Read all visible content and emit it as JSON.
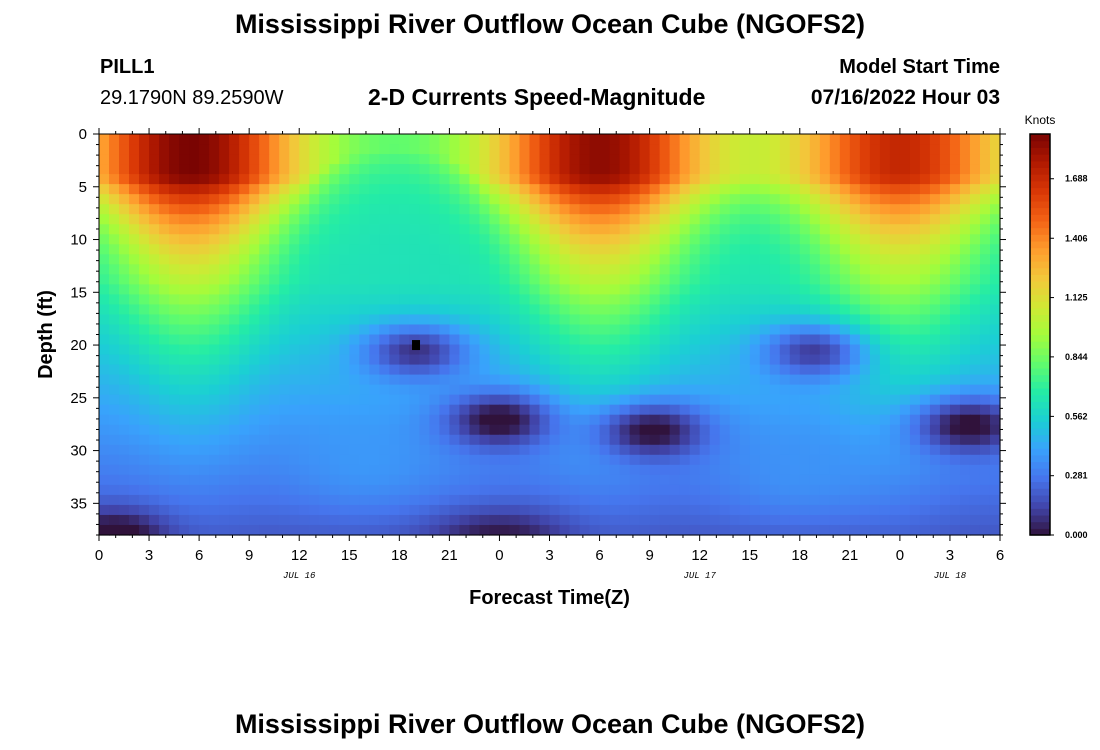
{
  "header": {
    "title": "Mississippi River Outflow Ocean Cube (NGOFS2)",
    "station": "PILL1",
    "coordinates": "29.1790N  89.2590W",
    "subtitle": "2-D Currents Speed-Magnitude",
    "model_start_label": "Model Start Time",
    "model_start_value": "07/16/2022 Hour 03"
  },
  "footer": {
    "title": "Mississippi River Outflow Ocean Cube (NGOFS2)"
  },
  "chart_data": {
    "type": "heatmap",
    "title": "2-D Currents Speed-Magnitude",
    "xlabel": "Forecast Time(Z)",
    "ylabel": "Depth (ft)",
    "x_range_hours": [
      0,
      54
    ],
    "x_tick_labels": [
      "0",
      "3",
      "6",
      "9",
      "12",
      "15",
      "18",
      "21",
      "0",
      "3",
      "6",
      "9",
      "12",
      "15",
      "18",
      "21",
      "0",
      "3",
      "6"
    ],
    "date_labels": [
      {
        "text": "JUL 16",
        "hour": 12
      },
      {
        "text": "JUL 17",
        "hour": 36
      },
      {
        "text": "JUL 18",
        "hour": 51
      }
    ],
    "y_range_ft": [
      0,
      38
    ],
    "y_reversed": true,
    "y_tick_labels": [
      "0",
      "5",
      "10",
      "15",
      "20",
      "25",
      "30",
      "35"
    ],
    "colorbar": {
      "label": "Knots",
      "range": [
        0,
        1.9
      ],
      "tick_labels": [
        "0.000",
        "0.281",
        "0.562",
        "0.844",
        "1.125",
        "1.406",
        "1.688"
      ],
      "colors": [
        "#30123b",
        "#4145ab",
        "#4675ed",
        "#39a2fc",
        "#1bcfd4",
        "#24eca6",
        "#61fc6c",
        "#a4fc3b",
        "#d1e834",
        "#f3c63a",
        "#fe9b2d",
        "#f36315",
        "#d93806",
        "#b11901",
        "#7a0402"
      ]
    },
    "surface_speed_peaks": [
      {
        "hour": 5.5,
        "speed": 1.9
      },
      {
        "hour": 30,
        "speed": 1.85
      },
      {
        "hour": 48,
        "speed": 1.7
      }
    ],
    "low_speed_cores": [
      {
        "hour": 19,
        "depth_ft": 20.5,
        "speed": 0.05
      },
      {
        "hour": 43,
        "depth_ft": 20.5,
        "speed": 0.1
      },
      {
        "hour": 24,
        "depth_ft": 27,
        "speed": 0.12
      },
      {
        "hour": 33,
        "depth_ft": 28,
        "speed": 0.1
      },
      {
        "hour": 52,
        "depth_ft": 27.5,
        "speed": 0.1
      }
    ],
    "marker": {
      "hour": 19,
      "depth_ft": 20
    }
  }
}
